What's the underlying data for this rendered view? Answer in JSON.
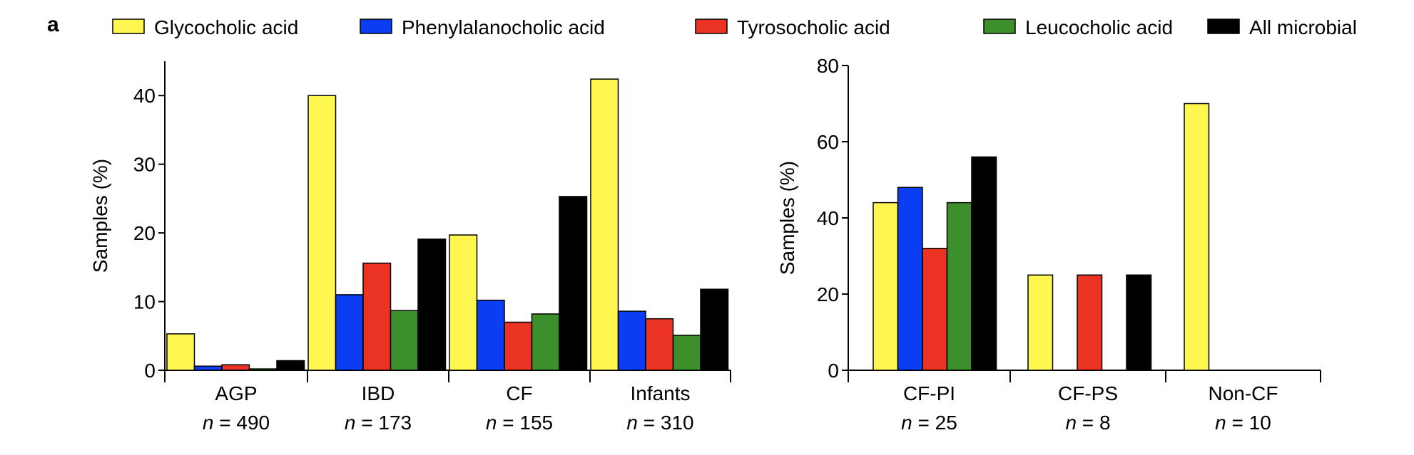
{
  "panel_label": "a",
  "legend": [
    {
      "name": "Glycocholic acid",
      "color": "#FFF64F"
    },
    {
      "name": "Phenylalanocholic acid",
      "color": "#0B3EF3"
    },
    {
      "name": "Tyrosocholic acid",
      "color": "#EA3323"
    },
    {
      "name": "Leucocholic acid",
      "color": "#3D8F2E"
    },
    {
      "name": "All microbial",
      "color": "#000000"
    }
  ],
  "n_prefix": "n",
  "chart_data": [
    {
      "type": "bar",
      "ylabel": "Samples (%)",
      "xlabel": "",
      "ylim": [
        0,
        45
      ],
      "yticks": [
        0,
        10,
        20,
        30,
        40
      ],
      "categories": [
        "AGP",
        "IBD",
        "CF",
        "Infants"
      ],
      "category_n": [
        "490",
        "173",
        "155",
        "310"
      ],
      "series": [
        {
          "name": "Glycocholic acid",
          "values": [
            5.3,
            40.0,
            19.7,
            42.4
          ]
        },
        {
          "name": "Phenylalanocholic acid",
          "values": [
            0.6,
            11.0,
            10.2,
            8.6
          ]
        },
        {
          "name": "Tyrosocholic acid",
          "values": [
            0.8,
            15.6,
            7.0,
            7.5
          ]
        },
        {
          "name": "Leucocholic acid",
          "values": [
            0.2,
            8.7,
            8.2,
            5.1
          ]
        },
        {
          "name": "All microbial",
          "values": [
            1.4,
            19.1,
            25.3,
            11.8
          ]
        }
      ]
    },
    {
      "type": "bar",
      "ylabel": "Samples (%)",
      "xlabel": "",
      "ylim": [
        0,
        80
      ],
      "yticks": [
        0,
        20,
        40,
        60,
        80
      ],
      "categories": [
        "CF-PI",
        "CF-PS",
        "Non-CF"
      ],
      "category_n": [
        "25",
        "8",
        "10"
      ],
      "series": [
        {
          "name": "Glycocholic acid",
          "values": [
            44,
            25,
            70
          ]
        },
        {
          "name": "Phenylalanocholic acid",
          "values": [
            48,
            0,
            0
          ]
        },
        {
          "name": "Tyrosocholic acid",
          "values": [
            32,
            25,
            0
          ]
        },
        {
          "name": "Leucocholic acid",
          "values": [
            44,
            0,
            0
          ]
        },
        {
          "name": "All microbial",
          "values": [
            56,
            25,
            0
          ]
        }
      ]
    }
  ]
}
